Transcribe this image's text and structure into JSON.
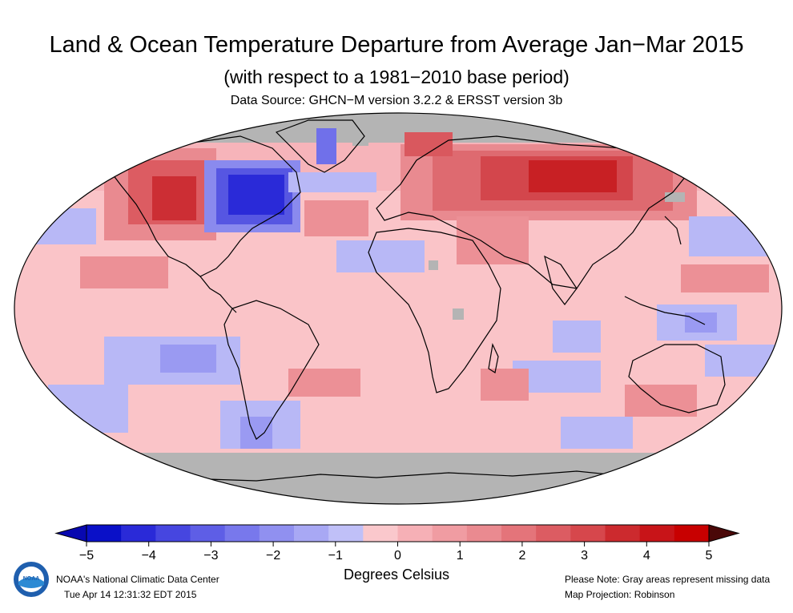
{
  "title": "Land & Ocean Temperature Departure from Average Jan−Mar 2015",
  "subtitle": "(with respect to a 1981−2010 base period)",
  "source": "Data Source: GHCN−M version 3.2.2 & ERSST version 3b",
  "legend": {
    "label": "Degrees Celsius",
    "ticks": [
      "−5",
      "−4",
      "−3",
      "−2",
      "−1",
      "0",
      "1",
      "2",
      "3",
      "4",
      "5"
    ],
    "colors": [
      "#0a10c8",
      "#2a2ad8",
      "#4646e0",
      "#5e5ee6",
      "#7878ec",
      "#9090f0",
      "#a8a8f4",
      "#c0c0f8",
      "#fac8cc",
      "#f6b0b6",
      "#f09ca2",
      "#ea8a90",
      "#e4747a",
      "#dc5c62",
      "#d6474c",
      "#cc2a2e",
      "#c81418",
      "#c80000"
    ],
    "end_left_color": "#0808b0",
    "end_right_color": "#4a0808"
  },
  "colors": {
    "missing": "#b4b4b4",
    "warm_base": "#fac4c8",
    "coast": "#000000"
  },
  "footer": {
    "agency": "NOAA's National Climatic Data Center",
    "timestamp": "Tue Apr 14 12:31:32 EDT 2015",
    "note": "Please Note: Gray areas represent missing data",
    "projection": "Map Projection: Robinson",
    "logo_text": "NOAA"
  }
}
